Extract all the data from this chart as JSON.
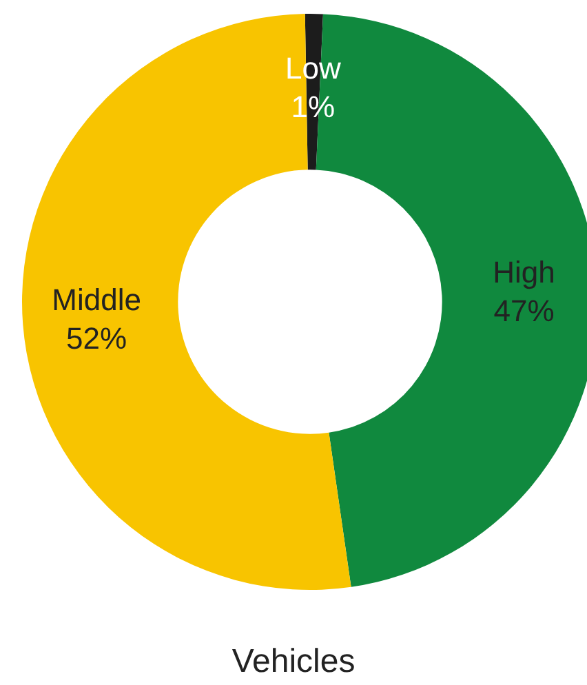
{
  "chart_data": {
    "type": "donut",
    "title": "Vehicles",
    "categories": [
      "Low",
      "High",
      "Middle"
    ],
    "values": [
      1,
      47,
      52
    ],
    "value_labels": [
      "1%",
      "47%",
      "52%"
    ],
    "colors": [
      "#1c1c1c",
      "#10893e",
      "#f8c400"
    ],
    "legend": false
  }
}
